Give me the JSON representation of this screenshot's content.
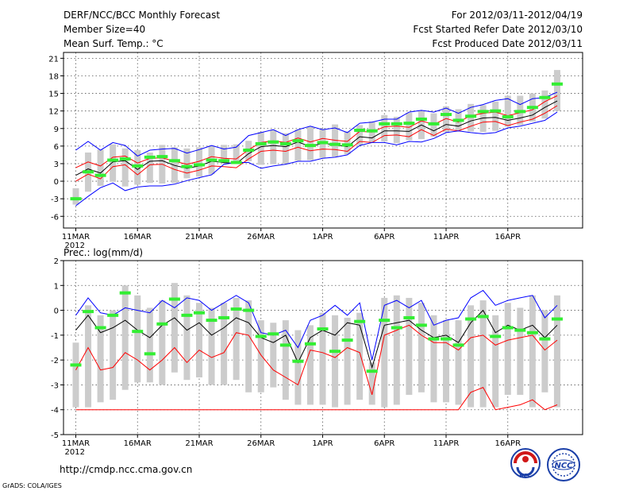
{
  "header": {
    "title": "DERF/NCC/BCC Monthly Forecast",
    "member_size": "Member Size=40",
    "variable": "Mean Surf. Temp.: °C",
    "period": "For 2012/03/11-2012/04/19",
    "refer_date": "Fcst Started Refer Date 2012/03/10",
    "produced_date": "Fcst Produced Date 2012/03/11"
  },
  "footer": {
    "url": "http://cmdp.ncc.cma.gov.cn",
    "credit": "GrADS: COLA/IGES",
    "logo_bcc": "BCC",
    "logo_ncc": "NCC"
  },
  "x_ticks": [
    "11MAR",
    "16MAR",
    "21MAR",
    "26MAR",
    "1APR",
    "6APR",
    "11APR",
    "16APR"
  ],
  "x_year": "2012",
  "colors": {
    "upper": "#0000ff",
    "lower": "#ff0000",
    "mean": "#000000",
    "observed": "#33ee33",
    "box": "#cccccc"
  },
  "chart_data": [
    {
      "type": "line",
      "title": "Mean Surf. Temp.: °C",
      "ylabel": "",
      "ylim": [
        -8,
        22
      ],
      "y_ticks": [
        -6,
        -3,
        0,
        3,
        6,
        9,
        12,
        15,
        18,
        21
      ],
      "x": [
        0,
        1,
        2,
        3,
        4,
        5,
        6,
        7,
        8,
        9,
        10,
        11,
        12,
        13,
        14,
        15,
        16,
        17,
        18,
        19,
        20,
        21,
        22,
        23,
        24,
        25,
        26,
        27,
        28,
        29,
        30,
        31,
        32,
        33,
        34,
        35,
        36,
        37,
        38,
        39
      ],
      "series": [
        {
          "name": "upper",
          "color": "#0000ff",
          "values": [
            5.3,
            6.8,
            5.3,
            6.6,
            6.1,
            4.3,
            5.3,
            5.5,
            5.6,
            4.8,
            5.4,
            6.1,
            5.5,
            5.8,
            7.8,
            8.3,
            8.8,
            7.8,
            8.8,
            9.4,
            8.8,
            9.1,
            8.3,
            9.9,
            10.1,
            10.6,
            10.6,
            11.8,
            12.1,
            11.8,
            12.5,
            11.6,
            12.6,
            13.1,
            13.8,
            14.1,
            13.1,
            14.1,
            14.3,
            15.2
          ]
        },
        {
          "name": "upper-inner",
          "color": "#ff0000",
          "values": [
            2.3,
            3.3,
            2.6,
            4.1,
            4.3,
            3.1,
            3.9,
            4.0,
            3.4,
            2.9,
            3.4,
            4.2,
            3.9,
            3.8,
            5.4,
            6.6,
            6.9,
            6.6,
            7.4,
            6.7,
            7.3,
            7.0,
            6.8,
            8.5,
            8.4,
            9.3,
            9.4,
            9.2,
            10.3,
            9.7,
            10.7,
            10.1,
            11.2,
            11.6,
            11.8,
            11.2,
            11.7,
            12.2,
            13.6,
            14.6
          ]
        },
        {
          "name": "ensemble-mean",
          "color": "#000000",
          "values": [
            1.0,
            2.1,
            1.4,
            3.3,
            3.5,
            2.0,
            3.4,
            3.5,
            2.7,
            2.2,
            2.6,
            3.4,
            3.2,
            3.0,
            4.7,
            5.9,
            6.1,
            5.9,
            6.7,
            5.9,
            6.5,
            6.2,
            5.9,
            7.6,
            7.4,
            8.6,
            8.6,
            8.5,
            9.6,
            8.6,
            9.7,
            9.4,
            10.3,
            10.8,
            10.9,
            10.4,
            10.8,
            11.3,
            12.6,
            13.7
          ]
        },
        {
          "name": "lower-inner",
          "color": "#ff0000",
          "values": [
            0.0,
            1.2,
            0.4,
            2.5,
            2.8,
            1.1,
            2.8,
            2.9,
            2.0,
            1.4,
            1.9,
            2.6,
            2.5,
            2.3,
            3.8,
            5.1,
            5.3,
            5.1,
            5.8,
            5.2,
            5.5,
            5.4,
            5.1,
            6.8,
            6.6,
            7.8,
            7.9,
            7.6,
            8.8,
            7.8,
            8.9,
            8.6,
            9.4,
            10.1,
            10.2,
            9.5,
            10.1,
            10.6,
            11.6,
            12.9
          ]
        },
        {
          "name": "lower",
          "color": "#0000ff",
          "values": [
            -4.2,
            -2.6,
            -1.1,
            -0.3,
            -1.6,
            -1.0,
            -0.8,
            -0.8,
            -0.5,
            0.1,
            0.6,
            1.1,
            2.9,
            3.2,
            3.2,
            2.2,
            2.6,
            2.9,
            3.4,
            3.4,
            3.9,
            4.1,
            4.5,
            6.1,
            6.6,
            6.6,
            6.2,
            6.8,
            6.7,
            7.3,
            8.3,
            8.6,
            8.3,
            8.1,
            8.3,
            9.1,
            9.4,
            9.9,
            10.4,
            11.8
          ]
        },
        {
          "name": "observed",
          "color": "#33ee33",
          "values": [
            -3.0,
            1.6,
            1.0,
            3.6,
            3.8,
            2.6,
            4.1,
            4.2,
            3.5,
            2.5,
            2.8,
            3.6,
            3.5,
            3.2,
            5.3,
            6.4,
            6.7,
            6.4,
            6.9,
            6.1,
            6.6,
            6.3,
            6.2,
            8.7,
            8.6,
            9.8,
            9.8,
            9.9,
            10.6,
            9.8,
            11.4,
            10.4,
            11.1,
            11.9,
            12.0,
            11.0,
            11.9,
            12.6,
            14.3,
            16.6
          ]
        }
      ],
      "boxes": {
        "low": [
          -4.0,
          -1.8,
          -0.8,
          -0.1,
          -0.9,
          -0.6,
          -0.3,
          -0.4,
          -0.3,
          0.5,
          0.8,
          1.2,
          3.0,
          3.3,
          3.4,
          2.8,
          2.9,
          3.0,
          3.5,
          3.6,
          4.0,
          4.2,
          4.6,
          6.2,
          6.7,
          6.8,
          6.5,
          7.0,
          7.2,
          7.6,
          8.4,
          8.7,
          8.5,
          8.4,
          8.6,
          9.3,
          9.6,
          10.2,
          10.7,
          12.0
        ],
        "high": [
          -1.2,
          4.9,
          5.4,
          6.3,
          5.6,
          5.3,
          4.9,
          6.2,
          5.8,
          5.6,
          5.8,
          6.1,
          6.2,
          6.3,
          6.9,
          8.4,
          8.7,
          8.2,
          8.8,
          9.3,
          8.9,
          9.7,
          8.5,
          9.6,
          10.2,
          11.3,
          11.0,
          11.7,
          12.0,
          11.6,
          12.8,
          12.3,
          13.2,
          13.0,
          13.6,
          14.6,
          14.6,
          15.0,
          15.5,
          19.0
        ]
      }
    },
    {
      "type": "line",
      "title": "Prec.: log(mm/d)",
      "ylabel": "",
      "ylim": [
        -5,
        2
      ],
      "y_ticks": [
        -5,
        -4,
        -3,
        -2,
        -1,
        0,
        1,
        2
      ],
      "x": [
        0,
        1,
        2,
        3,
        4,
        5,
        6,
        7,
        8,
        9,
        10,
        11,
        12,
        13,
        14,
        15,
        16,
        17,
        18,
        19,
        20,
        21,
        22,
        23,
        24,
        25,
        26,
        27,
        28,
        29,
        30,
        31,
        32,
        33,
        34,
        35,
        36,
        37,
        38,
        39
      ],
      "series": [
        {
          "name": "upper",
          "color": "#0000ff",
          "values": [
            -0.2,
            0.5,
            -0.1,
            -0.2,
            0.1,
            0.0,
            -0.1,
            0.4,
            0.1,
            0.5,
            0.4,
            0.0,
            0.3,
            0.6,
            0.3,
            -0.9,
            -1.0,
            -0.8,
            -1.5,
            -0.4,
            -0.2,
            0.2,
            -0.2,
            0.3,
            -2.0,
            0.2,
            0.4,
            0.1,
            0.4,
            -0.6,
            -0.4,
            -0.3,
            0.5,
            0.8,
            0.2,
            0.4,
            0.5,
            0.6,
            -0.3,
            0.2
          ]
        },
        {
          "name": "ensemble-mean",
          "color": "#000000",
          "values": [
            -0.8,
            -0.2,
            -0.9,
            -0.7,
            -0.4,
            -0.8,
            -1.1,
            -0.6,
            -0.3,
            -0.8,
            -0.5,
            -1.0,
            -0.7,
            -0.3,
            -0.5,
            -1.1,
            -1.3,
            -1.0,
            -2.1,
            -1.1,
            -0.8,
            -1.0,
            -0.5,
            -0.6,
            -2.3,
            -0.6,
            -0.5,
            -0.4,
            -0.8,
            -1.1,
            -1.0,
            -1.3,
            -0.5,
            0.0,
            -0.9,
            -0.6,
            -0.8,
            -0.6,
            -1.1,
            -0.6
          ]
        },
        {
          "name": "lower",
          "color": "#ff0000",
          "values": [
            -2.4,
            -1.5,
            -2.4,
            -2.3,
            -1.7,
            -2.0,
            -2.4,
            -2.0,
            -1.5,
            -2.1,
            -1.6,
            -1.9,
            -1.7,
            -0.9,
            -1.0,
            -1.8,
            -2.4,
            -2.7,
            -3.0,
            -1.6,
            -1.7,
            -1.9,
            -1.5,
            -1.7,
            -3.4,
            -1.0,
            -0.8,
            -0.6,
            -1.0,
            -1.3,
            -1.3,
            -1.6,
            -1.1,
            -1.0,
            -1.4,
            -1.2,
            -1.1,
            -1.0,
            -1.6,
            -1.2
          ]
        },
        {
          "name": "lower-min",
          "color": "#ff0000",
          "values": [
            -4.0,
            -4.0,
            -4.0,
            -4.0,
            -4.0,
            -4.0,
            -4.0,
            -4.0,
            -4.0,
            -4.0,
            -4.0,
            -4.0,
            -4.0,
            -4.0,
            -4.0,
            -4.0,
            -4.0,
            -4.0,
            -4.0,
            -4.0,
            -4.0,
            -4.0,
            -4.0,
            -4.0,
            -4.0,
            -4.0,
            -4.0,
            -4.0,
            -4.0,
            -4.0,
            -4.0,
            -4.0,
            -3.3,
            -3.1,
            -4.0,
            -3.9,
            -3.8,
            -3.6,
            -4.0,
            -3.8
          ]
        },
        {
          "name": "observed",
          "color": "#33ee33",
          "values": [
            -2.2,
            -0.05,
            -0.7,
            -0.2,
            0.7,
            -0.85,
            -1.75,
            -0.55,
            0.45,
            -0.2,
            -0.1,
            -0.4,
            -0.3,
            0.05,
            0.0,
            -1.05,
            -0.95,
            -1.4,
            -2.05,
            -1.35,
            -0.75,
            -1.65,
            -1.2,
            -0.45,
            -2.45,
            -0.4,
            -0.7,
            -0.3,
            -0.6,
            -1.15,
            -1.15,
            -1.4,
            -0.35,
            -0.25,
            -1.05,
            -0.7,
            -0.8,
            -0.9,
            -1.15,
            -0.35
          ]
        }
      ],
      "boxes": {
        "low": [
          -3.9,
          -3.9,
          -3.7,
          -3.6,
          -3.2,
          -2.9,
          -2.9,
          -3.0,
          -2.5,
          -2.8,
          -2.7,
          -3.0,
          -3.0,
          -2.8,
          -3.3,
          -3.3,
          -3.1,
          -3.6,
          -3.8,
          -3.8,
          -3.8,
          -3.9,
          -3.8,
          -3.6,
          -3.8,
          -3.9,
          -3.8,
          -3.4,
          -3.3,
          -3.7,
          -3.7,
          -3.8,
          -3.9,
          -3.9,
          -3.9,
          -3.4,
          -3.4,
          -3.9,
          -3.3,
          -3.9
        ],
        "high": [
          -1.3,
          0.2,
          -0.2,
          0.0,
          1.0,
          0.6,
          0.1,
          0.4,
          1.1,
          0.6,
          0.3,
          0.1,
          0.3,
          0.5,
          0.4,
          -0.4,
          -0.5,
          -0.4,
          -0.8,
          -0.6,
          -0.1,
          -0.2,
          -0.3,
          -0.1,
          -2.1,
          0.5,
          0.6,
          0.5,
          0.3,
          -0.2,
          -0.4,
          -0.4,
          0.2,
          0.4,
          -0.2,
          0.3,
          0.1,
          0.6,
          0.0,
          0.6
        ]
      }
    }
  ]
}
